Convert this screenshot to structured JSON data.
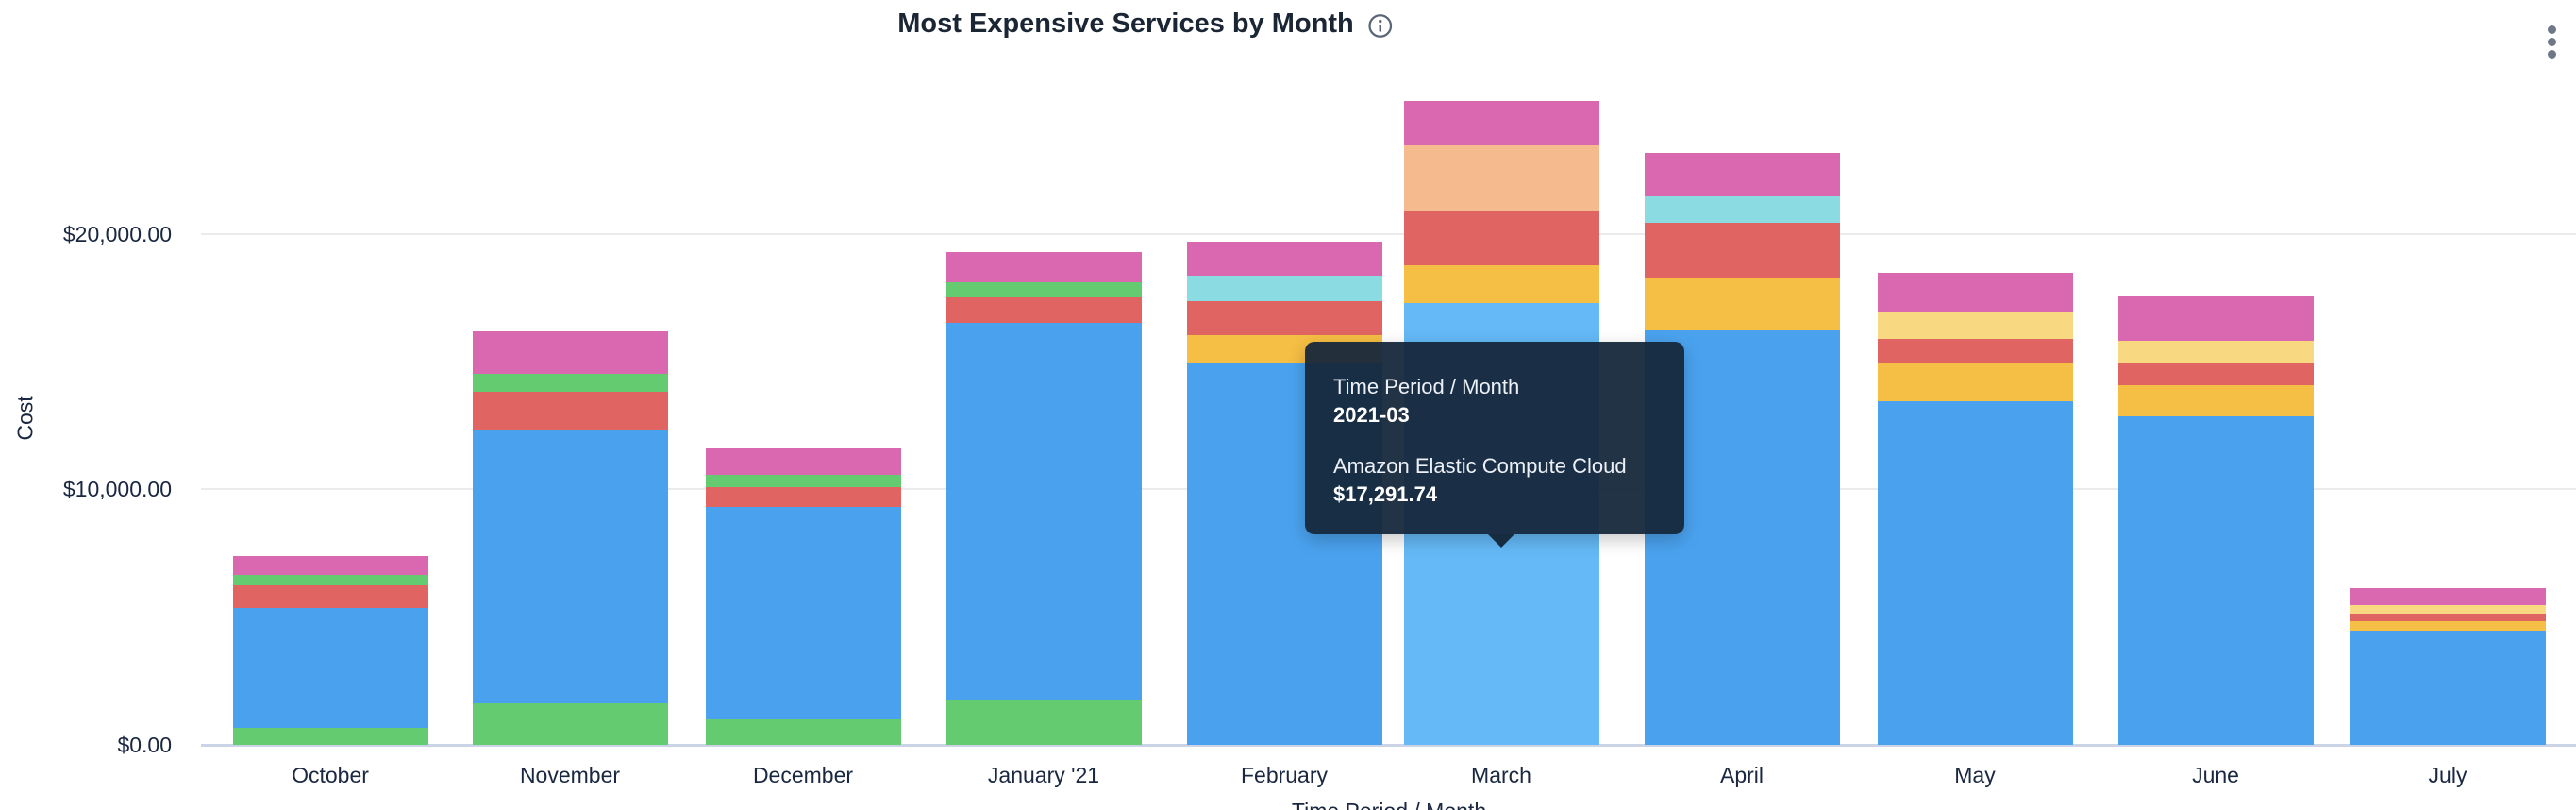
{
  "header": {
    "title": "Most Expensive Services by Month",
    "icons": {
      "title_info": "info-circle",
      "top_right_menu": "vertical-ellipsis"
    }
  },
  "tooltip": {
    "dimension_label": "Time Period / Month",
    "dimension_value": "2021-03",
    "series_label": "Amazon Elastic Compute Cloud",
    "series_value": "$17,291.74"
  },
  "chart_data": {
    "type": "bar",
    "stacked": true,
    "title": "Most Expensive Services by Month",
    "xlabel": "Time Period / Month",
    "ylabel": "Cost",
    "y_ticks": [
      "$0.00",
      "$10,000.00",
      "$20,000.00"
    ],
    "ylim": [
      0,
      26000
    ],
    "grid": true,
    "legend": "none",
    "categories": [
      "October",
      "November",
      "December",
      "January '21",
      "February",
      "March",
      "April",
      "May",
      "June",
      "July"
    ],
    "highlight": {
      "category": "March",
      "period": "2021-03",
      "service": "Amazon Elastic Compute Cloud",
      "value": 17291.74
    },
    "known_series": {
      "blue": "Amazon Elastic Compute Cloud"
    },
    "colors": {
      "blue": "#4AA2EE",
      "blue_highlight": "#64B9F6",
      "green": "#65CB70",
      "red": "#E06562",
      "pink": "#D968B1",
      "yellow": "#F5BE44",
      "light_yellow": "#F8D982",
      "cyan": "#8ADBE2",
      "peach": "#F5BB8E"
    },
    "segment_order": "bottom-to-top",
    "bars": [
      {
        "month": "October",
        "total": 7390,
        "segments": [
          {
            "color": "green",
            "value": 660
          },
          {
            "color": "blue",
            "value": 4690
          },
          {
            "color": "red",
            "value": 890
          },
          {
            "color": "green",
            "value": 410
          },
          {
            "color": "pink",
            "value": 740
          }
        ]
      },
      {
        "month": "November",
        "total": 16190,
        "segments": [
          {
            "color": "green",
            "value": 1620
          },
          {
            "color": "blue",
            "value": 10700
          },
          {
            "color": "red",
            "value": 1510
          },
          {
            "color": "green",
            "value": 700
          },
          {
            "color": "pink",
            "value": 1660
          }
        ]
      },
      {
        "month": "December",
        "total": 11620,
        "segments": [
          {
            "color": "green",
            "value": 1000
          },
          {
            "color": "blue",
            "value": 8300
          },
          {
            "color": "red",
            "value": 810
          },
          {
            "color": "green",
            "value": 480
          },
          {
            "color": "pink",
            "value": 1030
          }
        ]
      },
      {
        "month": "January '21",
        "total": 19300,
        "segments": [
          {
            "color": "green",
            "value": 1770
          },
          {
            "color": "blue",
            "value": 14760
          },
          {
            "color": "red",
            "value": 1000
          },
          {
            "color": "green",
            "value": 590
          },
          {
            "color": "pink",
            "value": 1180
          }
        ]
      },
      {
        "month": "February",
        "total": 19720,
        "segments": [
          {
            "color": "blue",
            "value": 14950
          },
          {
            "color": "yellow",
            "value": 1110
          },
          {
            "color": "red",
            "value": 1330
          },
          {
            "color": "cyan",
            "value": 1000
          },
          {
            "color": "pink",
            "value": 1330
          }
        ]
      },
      {
        "month": "March",
        "total": 25230,
        "segments": [
          {
            "color": "blue_highlight",
            "value": 17291.74
          },
          {
            "color": "yellow",
            "value": 1480
          },
          {
            "color": "red",
            "value": 2140
          },
          {
            "color": "peach",
            "value": 2550
          },
          {
            "color": "pink",
            "value": 1770
          }
        ]
      },
      {
        "month": "April",
        "total": 23180,
        "segments": [
          {
            "color": "blue",
            "value": 16240
          },
          {
            "color": "yellow",
            "value": 2030
          },
          {
            "color": "red",
            "value": 2180
          },
          {
            "color": "cyan",
            "value": 1030
          },
          {
            "color": "pink",
            "value": 1700
          }
        ]
      },
      {
        "month": "May",
        "total": 18480,
        "segments": [
          {
            "color": "blue",
            "value": 13470
          },
          {
            "color": "yellow",
            "value": 1510
          },
          {
            "color": "red",
            "value": 920
          },
          {
            "color": "light_yellow",
            "value": 1030
          },
          {
            "color": "pink",
            "value": 1550
          }
        ]
      },
      {
        "month": "June",
        "total": 17570,
        "segments": [
          {
            "color": "blue",
            "value": 12880
          },
          {
            "color": "yellow",
            "value": 1220
          },
          {
            "color": "red",
            "value": 850
          },
          {
            "color": "light_yellow",
            "value": 890
          },
          {
            "color": "pink",
            "value": 1730
          }
        ]
      },
      {
        "month": "July",
        "total": 6130,
        "segments": [
          {
            "color": "blue",
            "value": 4470
          },
          {
            "color": "yellow",
            "value": 370
          },
          {
            "color": "red",
            "value": 300
          },
          {
            "color": "light_yellow",
            "value": 330
          },
          {
            "color": "pink",
            "value": 660
          }
        ]
      }
    ]
  }
}
